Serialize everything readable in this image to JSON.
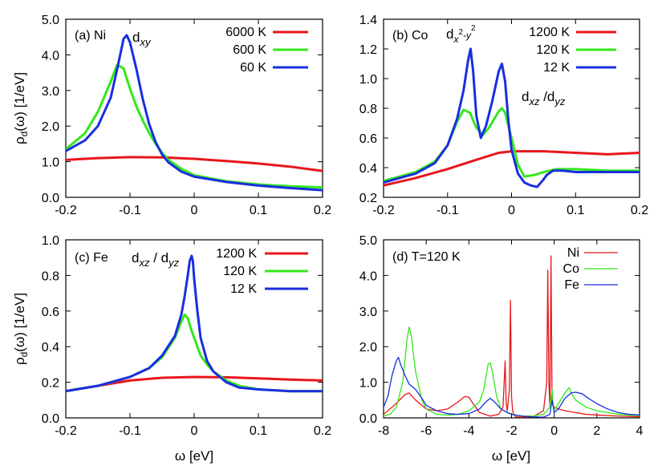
{
  "figure": {
    "shared_ylabel": {
      "rho": "ρ",
      "sub": "d",
      "rest": "(ω) [1/eV]"
    },
    "shared_xlabel": "ω [eV]"
  },
  "chart_data": [
    {
      "type": "line",
      "panel_label": "(a) Ni",
      "annotations": [
        {
          "main": "d",
          "sub": "xy"
        }
      ],
      "xlim": [
        -0.2,
        0.2
      ],
      "ylim": [
        0,
        5
      ],
      "xticks": [
        "-0.2",
        "-0.1",
        "0",
        "0.1",
        "0.2"
      ],
      "yticks": [
        "0.0",
        "1.0",
        "2.0",
        "3.0",
        "4.0",
        "5.0"
      ],
      "legend_position": "top-right",
      "series": [
        {
          "name": "6000 K",
          "color": "#e8161b",
          "x": [
            -0.2,
            -0.15,
            -0.1,
            -0.05,
            0,
            0.05,
            0.1,
            0.15,
            0.2
          ],
          "y": [
            1.05,
            1.1,
            1.13,
            1.12,
            1.08,
            1.02,
            0.95,
            0.86,
            0.74
          ]
        },
        {
          "name": "600 K",
          "color": "#33e81a",
          "x": [
            -0.2,
            -0.17,
            -0.15,
            -0.13,
            -0.12,
            -0.11,
            -0.1,
            -0.09,
            -0.08,
            -0.07,
            -0.06,
            -0.05,
            -0.04,
            -0.02,
            0,
            0.05,
            0.1,
            0.15,
            0.2
          ],
          "y": [
            1.35,
            1.8,
            2.4,
            3.25,
            3.72,
            3.62,
            3.05,
            2.55,
            2.15,
            1.8,
            1.5,
            1.25,
            1.05,
            0.8,
            0.62,
            0.45,
            0.36,
            0.31,
            0.28
          ]
        },
        {
          "name": "60 K",
          "color": "#1a2ee0",
          "x": [
            -0.2,
            -0.17,
            -0.15,
            -0.13,
            -0.12,
            -0.11,
            -0.105,
            -0.1,
            -0.09,
            -0.08,
            -0.07,
            -0.06,
            -0.05,
            -0.04,
            -0.02,
            0,
            0.05,
            0.1,
            0.15,
            0.2
          ],
          "y": [
            1.3,
            1.6,
            2.0,
            2.8,
            3.6,
            4.45,
            4.55,
            4.35,
            3.6,
            2.75,
            2.05,
            1.55,
            1.2,
            0.98,
            0.72,
            0.58,
            0.43,
            0.33,
            0.26,
            0.2
          ]
        }
      ]
    },
    {
      "type": "line",
      "panel_label": "(b) Co",
      "annotations": [
        {
          "main": "d",
          "sub": "x",
          "sup1": "2",
          "mid": "-y",
          "sup2": "2"
        },
        {
          "main": "d",
          "sub": "xz",
          "sep": " /d",
          "sub2": "yz"
        }
      ],
      "xlim": [
        -0.2,
        0.2
      ],
      "ylim": [
        0.2,
        1.4
      ],
      "xticks": [
        "-0.2",
        "-0.1",
        "0",
        "0.1",
        "0.2"
      ],
      "yticks": [
        "0.2",
        "0.4",
        "0.6",
        "0.8",
        "1.0",
        "1.2",
        "1.4"
      ],
      "legend_position": "top-right",
      "series": [
        {
          "name": "1200 K",
          "color": "#e8161b",
          "x": [
            -0.2,
            -0.15,
            -0.1,
            -0.05,
            -0.02,
            0,
            0.05,
            0.1,
            0.15,
            0.2
          ],
          "y": [
            0.28,
            0.33,
            0.39,
            0.46,
            0.5,
            0.51,
            0.51,
            0.5,
            0.49,
            0.5
          ]
        },
        {
          "name": "120 K",
          "color": "#33e81a",
          "x": [
            -0.2,
            -0.15,
            -0.12,
            -0.1,
            -0.085,
            -0.075,
            -0.065,
            -0.055,
            -0.045,
            -0.035,
            -0.02,
            -0.015,
            -0.01,
            0,
            0.01,
            0.02,
            0.035,
            0.05,
            0.06,
            0.07,
            0.1,
            0.15,
            0.2
          ],
          "y": [
            0.31,
            0.37,
            0.44,
            0.55,
            0.71,
            0.79,
            0.77,
            0.67,
            0.62,
            0.67,
            0.78,
            0.8,
            0.77,
            0.6,
            0.42,
            0.34,
            0.35,
            0.37,
            0.38,
            0.39,
            0.39,
            0.38,
            0.38
          ]
        },
        {
          "name": "12 K",
          "color": "#1a2ee0",
          "x": [
            -0.2,
            -0.15,
            -0.12,
            -0.1,
            -0.085,
            -0.075,
            -0.068,
            -0.064,
            -0.06,
            -0.055,
            -0.048,
            -0.04,
            -0.03,
            -0.02,
            -0.015,
            -0.01,
            -0.005,
            0,
            0.01,
            0.02,
            0.03,
            0.04,
            0.05,
            0.055,
            0.065,
            0.08,
            0.1,
            0.15,
            0.2
          ],
          "y": [
            0.3,
            0.36,
            0.43,
            0.55,
            0.73,
            0.92,
            1.12,
            1.2,
            1.05,
            0.75,
            0.6,
            0.68,
            0.85,
            1.05,
            1.1,
            0.98,
            0.72,
            0.52,
            0.36,
            0.3,
            0.28,
            0.27,
            0.32,
            0.35,
            0.38,
            0.38,
            0.37,
            0.37,
            0.37
          ]
        }
      ]
    },
    {
      "type": "line",
      "panel_label": "(c) Fe",
      "annotations": [
        {
          "main": "d",
          "sub": "xz",
          "sep": " / d",
          "sub2": "yz"
        }
      ],
      "xlim": [
        -0.2,
        0.2
      ],
      "ylim": [
        0,
        1.0
      ],
      "xticks": [
        "-0.2",
        "-0.1",
        "0",
        "0.1",
        "0.2"
      ],
      "yticks": [
        "0.0",
        "0.2",
        "0.4",
        "0.6",
        "0.8",
        "1.0"
      ],
      "legend_position": "top-right",
      "series": [
        {
          "name": "1200 K",
          "color": "#e8161b",
          "x": [
            -0.2,
            -0.15,
            -0.1,
            -0.05,
            0,
            0.05,
            0.1,
            0.15,
            0.2
          ],
          "y": [
            0.15,
            0.18,
            0.21,
            0.225,
            0.23,
            0.228,
            0.222,
            0.215,
            0.21
          ]
        },
        {
          "name": "120 K",
          "color": "#33e81a",
          "x": [
            -0.2,
            -0.15,
            -0.1,
            -0.07,
            -0.05,
            -0.03,
            -0.02,
            -0.015,
            -0.01,
            -0.005,
            0,
            0.01,
            0.02,
            0.03,
            0.05,
            0.07,
            0.1,
            0.15,
            0.2
          ],
          "y": [
            0.15,
            0.18,
            0.23,
            0.28,
            0.34,
            0.45,
            0.54,
            0.58,
            0.56,
            0.5,
            0.45,
            0.35,
            0.3,
            0.26,
            0.21,
            0.18,
            0.16,
            0.15,
            0.15
          ]
        },
        {
          "name": "12 K",
          "color": "#1a2ee0",
          "x": [
            -0.2,
            -0.15,
            -0.1,
            -0.07,
            -0.05,
            -0.03,
            -0.02,
            -0.015,
            -0.01,
            -0.007,
            -0.004,
            -0.002,
            0,
            0.005,
            0.01,
            0.02,
            0.03,
            0.05,
            0.07,
            0.1,
            0.15,
            0.2
          ],
          "y": [
            0.15,
            0.18,
            0.23,
            0.28,
            0.35,
            0.46,
            0.58,
            0.68,
            0.8,
            0.88,
            0.91,
            0.88,
            0.78,
            0.6,
            0.45,
            0.32,
            0.26,
            0.2,
            0.17,
            0.16,
            0.15,
            0.15
          ]
        }
      ]
    },
    {
      "type": "line",
      "panel_label": "(d) T=120 K",
      "annotations": [],
      "xlim": [
        -8,
        4
      ],
      "ylim": [
        0,
        5
      ],
      "xticks": [
        "-8",
        "-6",
        "-4",
        "-2",
        "0",
        "2",
        "4"
      ],
      "yticks": [
        "0.0",
        "1.0",
        "2.0",
        "3.0",
        "4.0",
        "5.0"
      ],
      "legend_position": "top-right",
      "series": [
        {
          "name": "Ni",
          "color": "#e8161b",
          "x": [
            -8,
            -7.5,
            -7,
            -6.8,
            -6.5,
            -6,
            -5.5,
            -5,
            -4.5,
            -4.2,
            -4,
            -3.8,
            -3.5,
            -3,
            -2.6,
            -2.4,
            -2.3,
            -2.25,
            -2.2,
            -2.1,
            -2.05,
            -2,
            -1.95,
            -1.9,
            -1.8,
            -1.5,
            -1,
            -0.5,
            -0.35,
            -0.3,
            -0.25,
            -0.2,
            -0.15,
            -0.1,
            -0.05,
            0,
            0.2,
            0.5,
            1,
            1.5,
            2,
            3,
            4
          ],
          "y": [
            0.1,
            0.35,
            0.65,
            0.7,
            0.5,
            0.25,
            0.2,
            0.25,
            0.45,
            0.6,
            0.58,
            0.4,
            0.15,
            0.05,
            0.1,
            0.3,
            1.6,
            0.4,
            0.2,
            0.8,
            3.3,
            0.6,
            0.2,
            0.1,
            0.03,
            0.02,
            0.03,
            0.2,
            1.0,
            4.15,
            1.0,
            0.3,
            4.55,
            0.4,
            0.35,
            0.3,
            0.25,
            0.2,
            0.15,
            0.1,
            0.08,
            0.05,
            0.03
          ]
        },
        {
          "name": "Co",
          "color": "#33e81a",
          "x": [
            -8,
            -7.7,
            -7.4,
            -7.1,
            -6.9,
            -6.8,
            -6.7,
            -6.5,
            -6.2,
            -6,
            -5.5,
            -5,
            -4.5,
            -4,
            -3.5,
            -3.3,
            -3.1,
            -3.0,
            -2.9,
            -2.7,
            -2.5,
            -2.2,
            -2,
            -1.5,
            -1,
            -0.5,
            -0.2,
            -0.1,
            -0.05,
            0,
            0.2,
            0.5,
            0.7,
            0.8,
            1.0,
            1.5,
            2,
            2.5,
            3,
            3.5,
            4
          ],
          "y": [
            0.05,
            0.1,
            0.3,
            1.0,
            2.2,
            2.55,
            2.3,
            1.3,
            0.5,
            0.25,
            0.1,
            0.08,
            0.1,
            0.2,
            0.45,
            0.8,
            1.5,
            1.55,
            1.3,
            0.6,
            0.25,
            0.15,
            0.1,
            0.05,
            0.05,
            0.1,
            0.3,
            0.8,
            0.4,
            0.2,
            0.4,
            0.7,
            0.85,
            0.7,
            0.5,
            0.3,
            0.2,
            0.15,
            0.1,
            0.08,
            0.06
          ]
        },
        {
          "name": "Fe",
          "color": "#1a2ee0",
          "x": [
            -8,
            -7.8,
            -7.6,
            -7.4,
            -7.3,
            -7.2,
            -7.0,
            -6.8,
            -6.5,
            -6.2,
            -6,
            -5.5,
            -5,
            -4.5,
            -4,
            -3.5,
            -3.2,
            -3.0,
            -2.8,
            -2.5,
            -2.2,
            -2,
            -1.5,
            -1,
            -0.5,
            -0.2,
            -0.1,
            0,
            0.2,
            0.5,
            0.8,
            1.0,
            1.3,
            1.6,
            2,
            2.5,
            3,
            3.5,
            4
          ],
          "y": [
            0.3,
            0.6,
            1.2,
            1.6,
            1.7,
            1.5,
            1.2,
            0.95,
            0.8,
            0.55,
            0.35,
            0.2,
            0.12,
            0.1,
            0.12,
            0.25,
            0.45,
            0.55,
            0.45,
            0.25,
            0.15,
            0.1,
            0.05,
            0.03,
            0.02,
            0.1,
            0.5,
            0.15,
            0.25,
            0.55,
            0.7,
            0.72,
            0.68,
            0.55,
            0.4,
            0.25,
            0.15,
            0.1,
            0.08
          ]
        }
      ]
    }
  ]
}
